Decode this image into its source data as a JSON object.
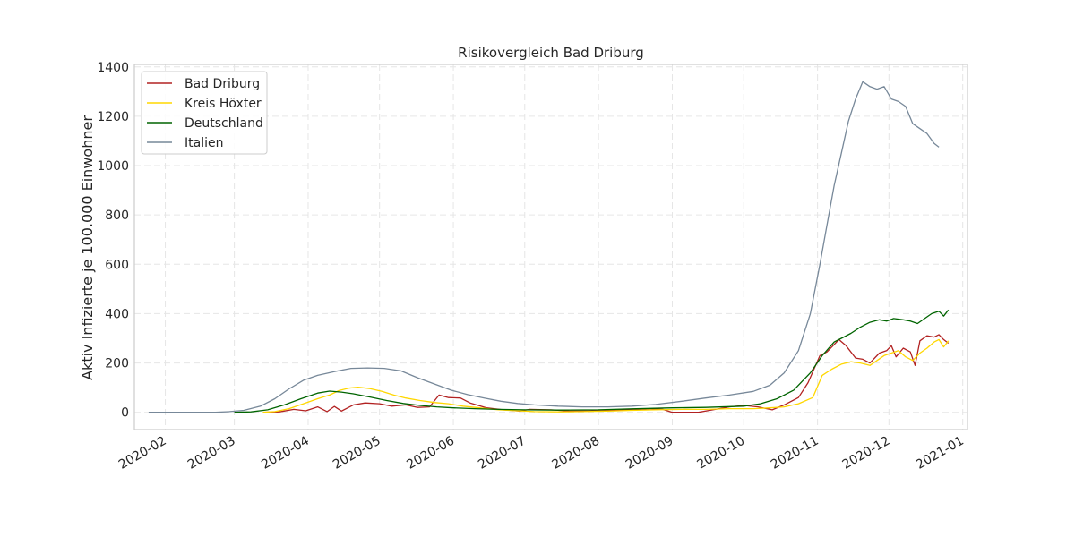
{
  "chart_data": {
    "type": "line",
    "title": "Risikovergleich Bad Driburg",
    "xlabel": "",
    "ylabel": "Aktiv Infizierte je 100.000 Einwohner",
    "x_ticks": [
      "2020-02",
      "2020-03",
      "2020-04",
      "2020-05",
      "2020-06",
      "2020-07",
      "2020-08",
      "2020-09",
      "2020-10",
      "2020-11",
      "2020-12",
      "2021-01"
    ],
    "y_ticks": [
      "0",
      "200",
      "400",
      "600",
      "800",
      "1000",
      "1200",
      "1400"
    ],
    "xlim": [
      "2020-01-19",
      "2021-01-03"
    ],
    "ylim": [
      -70,
      1410
    ],
    "grid": true,
    "legend_position": "top-left",
    "series": [
      {
        "name": "Bad Driburg",
        "color": "#b22222",
        "points": [
          [
            "2020-03-13",
            0
          ],
          [
            "2020-03-20",
            2
          ],
          [
            "2020-03-26",
            12
          ],
          [
            "2020-03-31",
            6
          ],
          [
            "2020-04-05",
            22
          ],
          [
            "2020-04-09",
            3
          ],
          [
            "2020-04-12",
            24
          ],
          [
            "2020-04-15",
            5
          ],
          [
            "2020-04-20",
            30
          ],
          [
            "2020-04-25",
            38
          ],
          [
            "2020-05-01",
            35
          ],
          [
            "2020-05-06",
            25
          ],
          [
            "2020-05-12",
            30
          ],
          [
            "2020-05-17",
            20
          ],
          [
            "2020-05-22",
            22
          ],
          [
            "2020-05-26",
            70
          ],
          [
            "2020-05-30",
            60
          ],
          [
            "2020-06-04",
            58
          ],
          [
            "2020-06-08",
            38
          ],
          [
            "2020-06-15",
            18
          ],
          [
            "2020-06-22",
            10
          ],
          [
            "2020-06-29",
            5
          ],
          [
            "2020-07-03",
            12
          ],
          [
            "2020-07-12",
            10
          ],
          [
            "2020-07-20",
            5
          ],
          [
            "2020-07-28",
            5
          ],
          [
            "2020-08-05",
            8
          ],
          [
            "2020-08-15",
            10
          ],
          [
            "2020-08-22",
            15
          ],
          [
            "2020-08-28",
            12
          ],
          [
            "2020-09-01",
            0
          ],
          [
            "2020-09-12",
            0
          ],
          [
            "2020-09-18",
            10
          ],
          [
            "2020-09-25",
            22
          ],
          [
            "2020-10-01",
            28
          ],
          [
            "2020-10-07",
            22
          ],
          [
            "2020-10-13",
            10
          ],
          [
            "2020-10-18",
            30
          ],
          [
            "2020-10-24",
            60
          ],
          [
            "2020-10-28",
            120
          ],
          [
            "2020-11-02",
            230
          ],
          [
            "2020-11-05",
            245
          ],
          [
            "2020-11-10",
            295
          ],
          [
            "2020-11-13",
            270
          ],
          [
            "2020-11-17",
            220
          ],
          [
            "2020-11-20",
            215
          ],
          [
            "2020-11-23",
            200
          ],
          [
            "2020-11-27",
            240
          ],
          [
            "2020-11-30",
            250
          ],
          [
            "2020-12-02",
            270
          ],
          [
            "2020-12-04",
            225
          ],
          [
            "2020-12-07",
            260
          ],
          [
            "2020-12-10",
            245
          ],
          [
            "2020-12-12",
            190
          ],
          [
            "2020-12-14",
            290
          ],
          [
            "2020-12-17",
            310
          ],
          [
            "2020-12-20",
            305
          ],
          [
            "2020-12-22",
            315
          ],
          [
            "2020-12-24",
            295
          ],
          [
            "2020-12-26",
            280
          ]
        ]
      },
      {
        "name": "Kreis Höxter",
        "color": "#ffd700",
        "points": [
          [
            "2020-03-13",
            0
          ],
          [
            "2020-03-18",
            3
          ],
          [
            "2020-03-24",
            15
          ],
          [
            "2020-03-30",
            35
          ],
          [
            "2020-04-05",
            55
          ],
          [
            "2020-04-10",
            70
          ],
          [
            "2020-04-14",
            88
          ],
          [
            "2020-04-18",
            98
          ],
          [
            "2020-04-22",
            102
          ],
          [
            "2020-04-27",
            96
          ],
          [
            "2020-05-02",
            85
          ],
          [
            "2020-05-07",
            70
          ],
          [
            "2020-05-12",
            58
          ],
          [
            "2020-05-18",
            48
          ],
          [
            "2020-05-24",
            40
          ],
          [
            "2020-05-30",
            35
          ],
          [
            "2020-06-05",
            25
          ],
          [
            "2020-06-12",
            18
          ],
          [
            "2020-06-20",
            10
          ],
          [
            "2020-06-28",
            6
          ],
          [
            "2020-07-05",
            3
          ],
          [
            "2020-07-15",
            2
          ],
          [
            "2020-07-25",
            3
          ],
          [
            "2020-08-05",
            5
          ],
          [
            "2020-08-15",
            8
          ],
          [
            "2020-08-25",
            10
          ],
          [
            "2020-09-05",
            12
          ],
          [
            "2020-09-15",
            12
          ],
          [
            "2020-09-25",
            15
          ],
          [
            "2020-10-05",
            15
          ],
          [
            "2020-10-12",
            18
          ],
          [
            "2020-10-18",
            22
          ],
          [
            "2020-10-24",
            35
          ],
          [
            "2020-10-30",
            60
          ],
          [
            "2020-11-03",
            150
          ],
          [
            "2020-11-07",
            175
          ],
          [
            "2020-11-11",
            195
          ],
          [
            "2020-11-15",
            205
          ],
          [
            "2020-11-19",
            200
          ],
          [
            "2020-11-23",
            190
          ],
          [
            "2020-11-26",
            210
          ],
          [
            "2020-11-29",
            230
          ],
          [
            "2020-12-02",
            240
          ],
          [
            "2020-12-05",
            250
          ],
          [
            "2020-12-08",
            225
          ],
          [
            "2020-12-11",
            210
          ],
          [
            "2020-12-14",
            240
          ],
          [
            "2020-12-17",
            260
          ],
          [
            "2020-12-20",
            285
          ],
          [
            "2020-12-22",
            295
          ],
          [
            "2020-12-24",
            265
          ],
          [
            "2020-12-26",
            290
          ]
        ]
      },
      {
        "name": "Deutschland",
        "color": "#006400",
        "points": [
          [
            "2020-03-01",
            0
          ],
          [
            "2020-03-08",
            2
          ],
          [
            "2020-03-15",
            10
          ],
          [
            "2020-03-22",
            30
          ],
          [
            "2020-03-29",
            55
          ],
          [
            "2020-04-05",
            78
          ],
          [
            "2020-04-10",
            86
          ],
          [
            "2020-04-15",
            82
          ],
          [
            "2020-04-20",
            75
          ],
          [
            "2020-04-27",
            62
          ],
          [
            "2020-05-04",
            48
          ],
          [
            "2020-05-11",
            36
          ],
          [
            "2020-05-18",
            28
          ],
          [
            "2020-05-25",
            22
          ],
          [
            "2020-06-01",
            18
          ],
          [
            "2020-06-10",
            15
          ],
          [
            "2020-06-20",
            12
          ],
          [
            "2020-07-01",
            10
          ],
          [
            "2020-07-15",
            9
          ],
          [
            "2020-08-01",
            10
          ],
          [
            "2020-08-15",
            14
          ],
          [
            "2020-09-01",
            18
          ],
          [
            "2020-09-15",
            20
          ],
          [
            "2020-10-01",
            25
          ],
          [
            "2020-10-08",
            35
          ],
          [
            "2020-10-15",
            55
          ],
          [
            "2020-10-22",
            90
          ],
          [
            "2020-10-29",
            160
          ],
          [
            "2020-11-03",
            230
          ],
          [
            "2020-11-08",
            285
          ],
          [
            "2020-11-11",
            300
          ],
          [
            "2020-11-15",
            320
          ],
          [
            "2020-11-19",
            345
          ],
          [
            "2020-11-23",
            365
          ],
          [
            "2020-11-27",
            375
          ],
          [
            "2020-11-30",
            370
          ],
          [
            "2020-12-03",
            380
          ],
          [
            "2020-12-07",
            375
          ],
          [
            "2020-12-10",
            370
          ],
          [
            "2020-12-13",
            360
          ],
          [
            "2020-12-16",
            380
          ],
          [
            "2020-12-19",
            400
          ],
          [
            "2020-12-22",
            410
          ],
          [
            "2020-12-24",
            390
          ],
          [
            "2020-12-26",
            415
          ]
        ]
      },
      {
        "name": "Italien",
        "color": "#778899",
        "points": [
          [
            "2020-01-25",
            0
          ],
          [
            "2020-02-22",
            0
          ],
          [
            "2020-02-28",
            3
          ],
          [
            "2020-03-05",
            8
          ],
          [
            "2020-03-12",
            25
          ],
          [
            "2020-03-18",
            55
          ],
          [
            "2020-03-24",
            95
          ],
          [
            "2020-03-30",
            130
          ],
          [
            "2020-04-05",
            150
          ],
          [
            "2020-04-12",
            165
          ],
          [
            "2020-04-19",
            178
          ],
          [
            "2020-04-26",
            180
          ],
          [
            "2020-05-03",
            178
          ],
          [
            "2020-05-10",
            168
          ],
          [
            "2020-05-17",
            140
          ],
          [
            "2020-05-24",
            115
          ],
          [
            "2020-05-31",
            90
          ],
          [
            "2020-06-07",
            72
          ],
          [
            "2020-06-14",
            58
          ],
          [
            "2020-06-21",
            45
          ],
          [
            "2020-06-28",
            36
          ],
          [
            "2020-07-05",
            30
          ],
          [
            "2020-07-15",
            25
          ],
          [
            "2020-07-25",
            22
          ],
          [
            "2020-08-05",
            22
          ],
          [
            "2020-08-15",
            25
          ],
          [
            "2020-08-25",
            32
          ],
          [
            "2020-09-05",
            45
          ],
          [
            "2020-09-15",
            58
          ],
          [
            "2020-09-25",
            70
          ],
          [
            "2020-10-05",
            85
          ],
          [
            "2020-10-12",
            110
          ],
          [
            "2020-10-18",
            160
          ],
          [
            "2020-10-24",
            250
          ],
          [
            "2020-10-29",
            400
          ],
          [
            "2020-11-02",
            600
          ],
          [
            "2020-11-05",
            760
          ],
          [
            "2020-11-08",
            920
          ],
          [
            "2020-11-11",
            1050
          ],
          [
            "2020-11-14",
            1180
          ],
          [
            "2020-11-17",
            1270
          ],
          [
            "2020-11-20",
            1340
          ],
          [
            "2020-11-23",
            1320
          ],
          [
            "2020-11-26",
            1310
          ],
          [
            "2020-11-29",
            1320
          ],
          [
            "2020-12-02",
            1270
          ],
          [
            "2020-12-05",
            1260
          ],
          [
            "2020-12-08",
            1240
          ],
          [
            "2020-12-11",
            1170
          ],
          [
            "2020-12-14",
            1150
          ],
          [
            "2020-12-17",
            1130
          ],
          [
            "2020-12-20",
            1090
          ],
          [
            "2020-12-22",
            1075
          ]
        ]
      }
    ]
  }
}
